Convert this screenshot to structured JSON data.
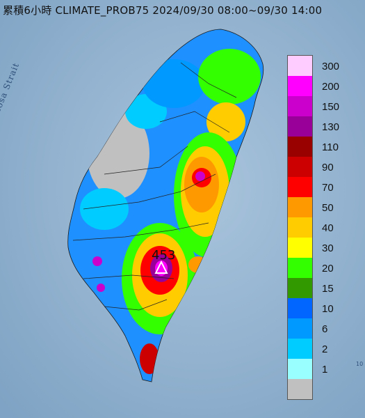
{
  "title": "累積6小時 CLIMATE_PROB75 2024/09/30 08:00~09/30 14:00",
  "map": {
    "strait_label": "Formosa Strait",
    "max_value_label": "453",
    "edge_text": "10"
  },
  "legend": [
    {
      "label": "300",
      "color": "#ffccff"
    },
    {
      "label": "200",
      "color": "#ff00ff"
    },
    {
      "label": "150",
      "color": "#cc00cc"
    },
    {
      "label": "130",
      "color": "#990099"
    },
    {
      "label": "110",
      "color": "#990000"
    },
    {
      "label": "90",
      "color": "#cc0000"
    },
    {
      "label": "70",
      "color": "#ff0000"
    },
    {
      "label": "50",
      "color": "#ff9900"
    },
    {
      "label": "40",
      "color": "#ffcc00"
    },
    {
      "label": "30",
      "color": "#ffff00"
    },
    {
      "label": "20",
      "color": "#33ff00"
    },
    {
      "label": "15",
      "color": "#339900"
    },
    {
      "label": "10",
      "color": "#0066ff"
    },
    {
      "label": "6",
      "color": "#0099ff"
    },
    {
      "label": "2",
      "color": "#00ccff"
    },
    {
      "label": "1",
      "color": "#99ffff"
    },
    {
      "label": "",
      "color": "#c0c0c0"
    }
  ]
}
